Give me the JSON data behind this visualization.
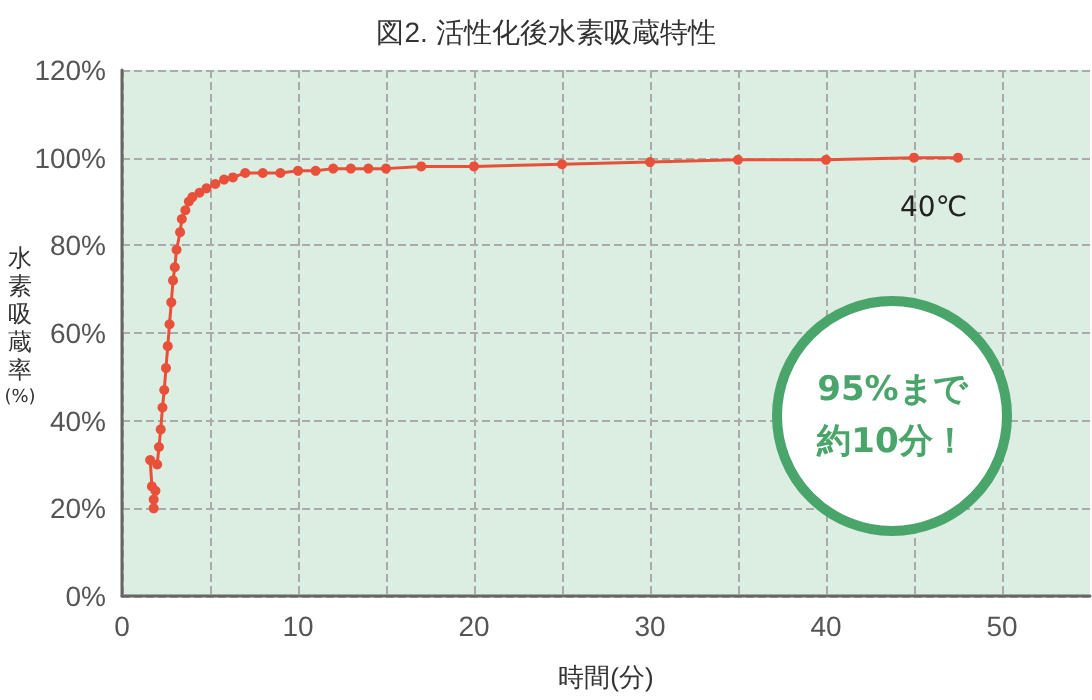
{
  "chart_data": {
    "type": "line",
    "title": "図2. 活性化後水素吸蔵特性",
    "xlabel": "時間(分)",
    "ylabel": "水素吸蔵率(%)",
    "annotations": [
      "40℃",
      "95%まで",
      "約10分！"
    ],
    "series": [
      {
        "color": "#e8503a",
        "x": [
          1.8,
          1.8,
          1.9,
          1.7,
          1.6,
          2.0,
          2.1,
          2.2,
          2.3,
          2.4,
          2.5,
          2.6,
          2.7,
          2.8,
          2.9,
          3.0,
          3.1,
          3.3,
          3.4,
          3.6,
          3.8,
          4.0,
          4.4,
          4.8,
          5.3,
          5.8,
          6.3,
          7,
          8,
          9,
          10,
          11,
          12,
          13,
          14,
          15,
          17,
          20,
          25,
          30,
          35,
          40,
          45,
          47.5
        ],
        "values": [
          20,
          22,
          24,
          25,
          31,
          30,
          34,
          38,
          43,
          47,
          52,
          57,
          62,
          67,
          72,
          75,
          79,
          83,
          86,
          88,
          90,
          91,
          92,
          93,
          94,
          95,
          95.5,
          96.5,
          96.5,
          96.5,
          97,
          97,
          97.5,
          97.5,
          97.5,
          97.5,
          98,
          98,
          98.5,
          99,
          99.5,
          99.5,
          100,
          100
        ]
      }
    ],
    "xlim": [
      0,
      55
    ],
    "xticks": [
      0,
      {
        "value": 5,
        "label": null
      },
      10,
      {
        "value": 15,
        "label": null
      },
      20,
      {
        "value": 25,
        "label": null
      },
      30,
      {
        "value": 35,
        "label": null
      },
      40,
      {
        "value": 45,
        "label": null
      },
      50
    ],
    "ylim": [
      0,
      120
    ],
    "yticks": [
      {
        "value": 0,
        "label": "0%"
      },
      {
        "value": 20,
        "label": "20%"
      },
      {
        "value": 40,
        "label": "40%"
      },
      {
        "value": 60,
        "label": "60%"
      },
      {
        "value": 80,
        "label": "80%"
      },
      {
        "value": 100,
        "label": "100%"
      },
      {
        "value": 120,
        "label": "120%"
      }
    ],
    "grid": true,
    "marker": "circle",
    "line_style": "solid"
  }
}
